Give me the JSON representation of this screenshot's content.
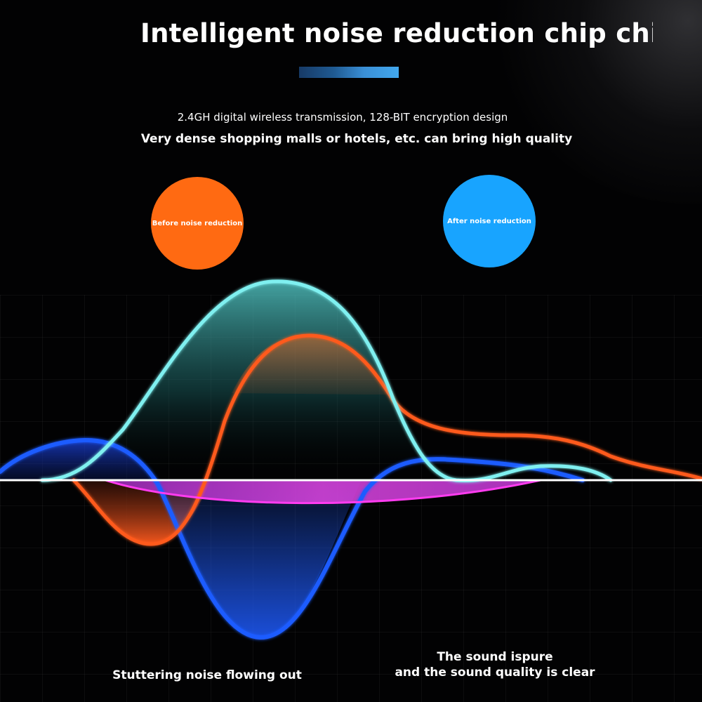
{
  "title": "Intelligent noise reduction chip chiı",
  "subtitle_line1": "2.4GH digital wireless transmission, 128-BIT encryption design",
  "subtitle_line2": "Very dense shopping malls or hotels, etc. can bring high quality",
  "badges": {
    "before": {
      "label": "Before noise reduction",
      "color": "#ff6a12"
    },
    "after": {
      "label": "After noise reduction",
      "color": "#18a4ff"
    }
  },
  "captions": {
    "left": "Stuttering noise flowing out",
    "right_line1": "The sound ispure",
    "right_line2": "and the sound quality is clear"
  },
  "colors": {
    "background": "#000000",
    "cyan_wave": "#7ff0f0",
    "orange_wave": "#ff5a1f",
    "blue_wave": "#1f5cff",
    "magenta_wave": "#ff3cf0",
    "baseline": "#ffffff",
    "accent_bar": "#3a8fd6"
  }
}
